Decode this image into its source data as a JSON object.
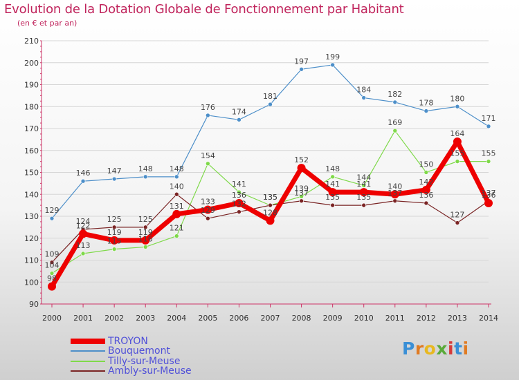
{
  "title": "Evolution de la Dotation Globale de Fonctionnement par Habitant",
  "subtitle": "(en € et par an)",
  "brand": {
    "letters": [
      "P",
      "r",
      "o",
      "x",
      "i",
      "t",
      "i"
    ],
    "colors": [
      "#3a8fd6",
      "#e07b22",
      "#e8b820",
      "#5aaa3a",
      "#d63a3a",
      "#3a8fd6",
      "#e07b22"
    ]
  },
  "chart_data": {
    "type": "line",
    "title": "Evolution de la Dotation Globale de Fonctionnement par Habitant",
    "subtitle": "(en € et par an)",
    "xlabel": "",
    "ylabel": "",
    "ylim": [
      90,
      210
    ],
    "yticks": [
      90,
      100,
      110,
      120,
      130,
      140,
      150,
      160,
      170,
      180,
      190,
      200,
      210
    ],
    "categories": [
      "2000",
      "2001",
      "2002",
      "2003",
      "2004",
      "2005",
      "2006",
      "2007",
      "2008",
      "2009",
      "2010",
      "2011",
      "2012",
      "2013",
      "2014"
    ],
    "legend_position": "bottom-left",
    "series": [
      {
        "name": "Bouquemont",
        "color": "#4d8fc9",
        "width": 1.2,
        "values": [
          129,
          146,
          147,
          148,
          148,
          176,
          174,
          181,
          197,
          199,
          184,
          182,
          178,
          180,
          171
        ]
      },
      {
        "name": "Tilly-sur-Meuse",
        "color": "#7fd94a",
        "width": 1.2,
        "values": [
          104,
          113,
          115,
          116,
          121,
          154,
          141,
          135,
          139,
          148,
          144,
          169,
          150,
          155,
          155
        ]
      },
      {
        "name": "Ambly-sur-Meuse",
        "color": "#7a2424",
        "width": 1.2,
        "values": [
          109,
          124,
          125,
          125,
          140,
          129,
          132,
          135,
          137,
          135,
          135,
          137,
          136,
          127,
          137
        ]
      },
      {
        "name": "TROYON",
        "color": "#ee0000",
        "width": 7,
        "values": [
          98,
          122,
          119,
          119,
          131,
          133,
          136,
          128,
          152,
          141,
          141,
          140,
          142,
          164,
          136
        ]
      }
    ],
    "legend_order": [
      "TROYON",
      "Bouquemont",
      "Tilly-sur-Meuse",
      "Ambly-sur-Meuse"
    ]
  }
}
